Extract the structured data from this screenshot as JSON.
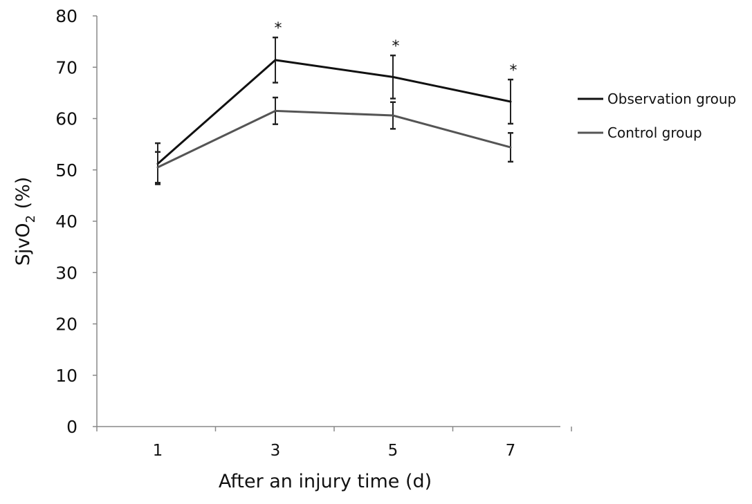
{
  "chart_data": {
    "type": "line",
    "title": "",
    "xlabel": "After an injury time (d)",
    "ylabel_main": "SjvO",
    "ylabel_sub": "2",
    "ylabel_unit": " (%)",
    "categories": [
      "1",
      "3",
      "5",
      "7"
    ],
    "ylim": [
      0,
      80
    ],
    "yticks": [
      "0",
      "10",
      "20",
      "30",
      "40",
      "50",
      "60",
      "70",
      "80"
    ],
    "grid": false,
    "legend_position": "right",
    "series": [
      {
        "name": "Observation group",
        "color": "#111111",
        "values": [
          51.2,
          71.4,
          68.1,
          63.3
        ],
        "errors": [
          4.0,
          4.4,
          4.2,
          4.3
        ],
        "markers": [
          "",
          "*",
          "*",
          "*"
        ]
      },
      {
        "name": "Control group",
        "color": "#555555",
        "values": [
          50.5,
          61.5,
          60.6,
          54.4
        ],
        "errors": [
          3.0,
          2.6,
          2.6,
          2.8
        ],
        "markers": [
          "",
          "",
          "",
          ""
        ]
      }
    ]
  }
}
